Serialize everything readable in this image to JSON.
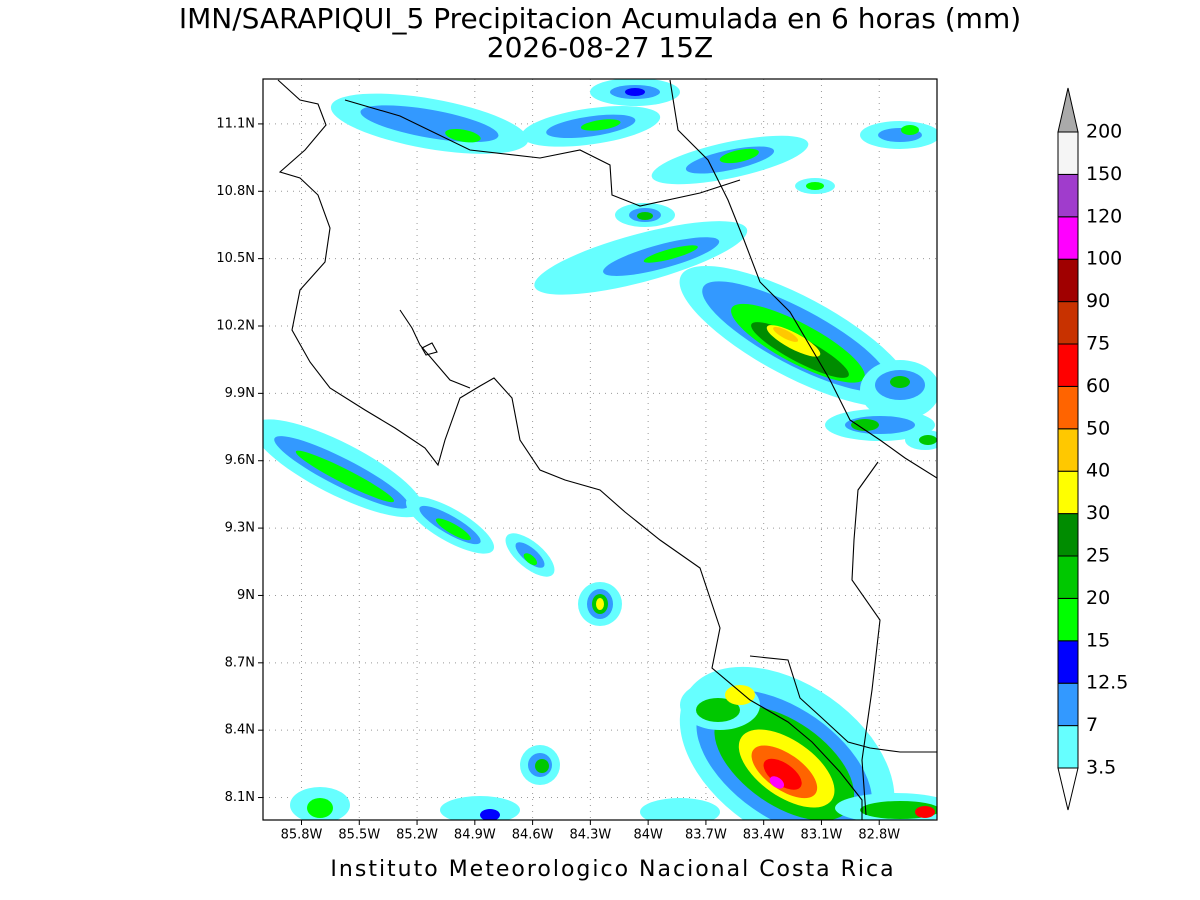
{
  "title": "IMN/SARAPIQUI_5 Precipitacion Acumulada en 6 horas (mm)",
  "subtitle": "2026-08-27 15Z",
  "map": {
    "xlim": [
      -86.0,
      -82.5
    ],
    "ylim": [
      8.0,
      11.3
    ],
    "xticks": [
      {
        "value": -85.8,
        "label": "85.8W"
      },
      {
        "value": -85.5,
        "label": "85.5W"
      },
      {
        "value": -85.2,
        "label": "85.2W"
      },
      {
        "value": -84.9,
        "label": "84.9W"
      },
      {
        "value": -84.6,
        "label": "84.6W"
      },
      {
        "value": -84.3,
        "label": "84.3W"
      },
      {
        "value": -84,
        "label": "84W"
      },
      {
        "value": -83.7,
        "label": "83.7W"
      },
      {
        "value": -83.4,
        "label": "83.4W"
      },
      {
        "value": -83.1,
        "label": "83.1W"
      },
      {
        "value": -82.8,
        "label": "82.8W"
      }
    ],
    "yticks": [
      {
        "value": 8.1,
        "label": "8.1N"
      },
      {
        "value": 8.4,
        "label": "8.4N"
      },
      {
        "value": 8.7,
        "label": "8.7N"
      },
      {
        "value": 9,
        "label": "9N"
      },
      {
        "value": 9.3,
        "label": "9.3N"
      },
      {
        "value": 9.6,
        "label": "9.6N"
      },
      {
        "value": 9.9,
        "label": "9.9N"
      },
      {
        "value": 10.2,
        "label": "10.2N"
      },
      {
        "value": 10.5,
        "label": "10.5N"
      },
      {
        "value": 10.8,
        "label": "10.8N"
      },
      {
        "value": 11.1,
        "label": "11.1N"
      }
    ],
    "grid": true
  },
  "colorbar": {
    "levels": [
      3.5,
      7,
      12.5,
      15,
      20,
      25,
      30,
      40,
      50,
      60,
      75,
      90,
      100,
      120,
      150,
      200
    ],
    "colors": [
      "#ffffff",
      "#66ffff",
      "#3399ff",
      "#0000ff",
      "#00ff00",
      "#00c800",
      "#008c00",
      "#ffff00",
      "#ffc800",
      "#ff6400",
      "#ff0000",
      "#c83200",
      "#a00000",
      "#ff00ff",
      "#a03ccc",
      "#f5f5f5",
      "#aaaaaa"
    ]
  },
  "footer": "Instituto Meteorologico Nacional Costa Rica"
}
